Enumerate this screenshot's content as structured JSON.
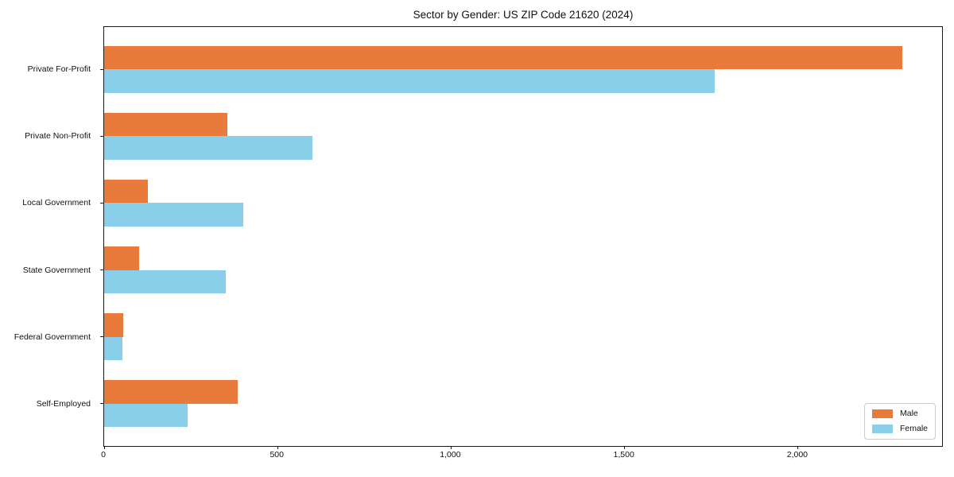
{
  "chart_data": {
    "type": "bar",
    "orientation": "horizontal",
    "title": "Sector by Gender: US ZIP Code 21620 (2024)",
    "categories": [
      "Private For-Profit",
      "Private Non-Profit",
      "Local Government",
      "State Government",
      "Federal Government",
      "Self-Employed"
    ],
    "series": [
      {
        "name": "Male",
        "color": "#e87b3c",
        "values": [
          2300,
          355,
          125,
          100,
          55,
          385
        ]
      },
      {
        "name": "Female",
        "color": "#89cfea",
        "values": [
          1760,
          600,
          400,
          350,
          53,
          240
        ]
      }
    ],
    "xlabel": "",
    "ylabel": "",
    "xlim": [
      0,
      2415
    ],
    "xticks": [
      0,
      500,
      1000,
      1500,
      2000
    ],
    "xtick_labels": [
      "0",
      "500",
      "1,000",
      "1,500",
      "2,000"
    ],
    "legend_position": "lower right",
    "grid": false,
    "colors": {
      "axis": "#1a1a1a",
      "legend_border": "#cccccc"
    }
  }
}
